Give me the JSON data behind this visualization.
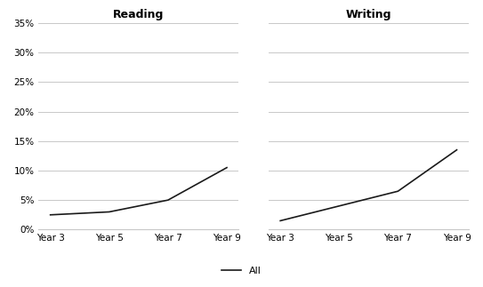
{
  "reading_values": [
    2.5,
    3.0,
    5.0,
    10.5
  ],
  "writing_values": [
    1.5,
    4.0,
    6.5,
    13.5
  ],
  "x_labels": [
    "Year 3",
    "Year 5",
    "Year 7",
    "Year 9"
  ],
  "x_positions": [
    0,
    1,
    2,
    3
  ],
  "title_reading": "Reading",
  "title_writing": "Writing",
  "ylim": [
    0,
    35
  ],
  "yticks": [
    0,
    5,
    10,
    15,
    20,
    25,
    30,
    35
  ],
  "line_color": "#1a1a1a",
  "line_width": 1.2,
  "grid_color": "#c8c8c8",
  "background_color": "#ffffff",
  "legend_label": "All",
  "title_fontsize": 9,
  "tick_fontsize": 7.5,
  "legend_fontsize": 8
}
